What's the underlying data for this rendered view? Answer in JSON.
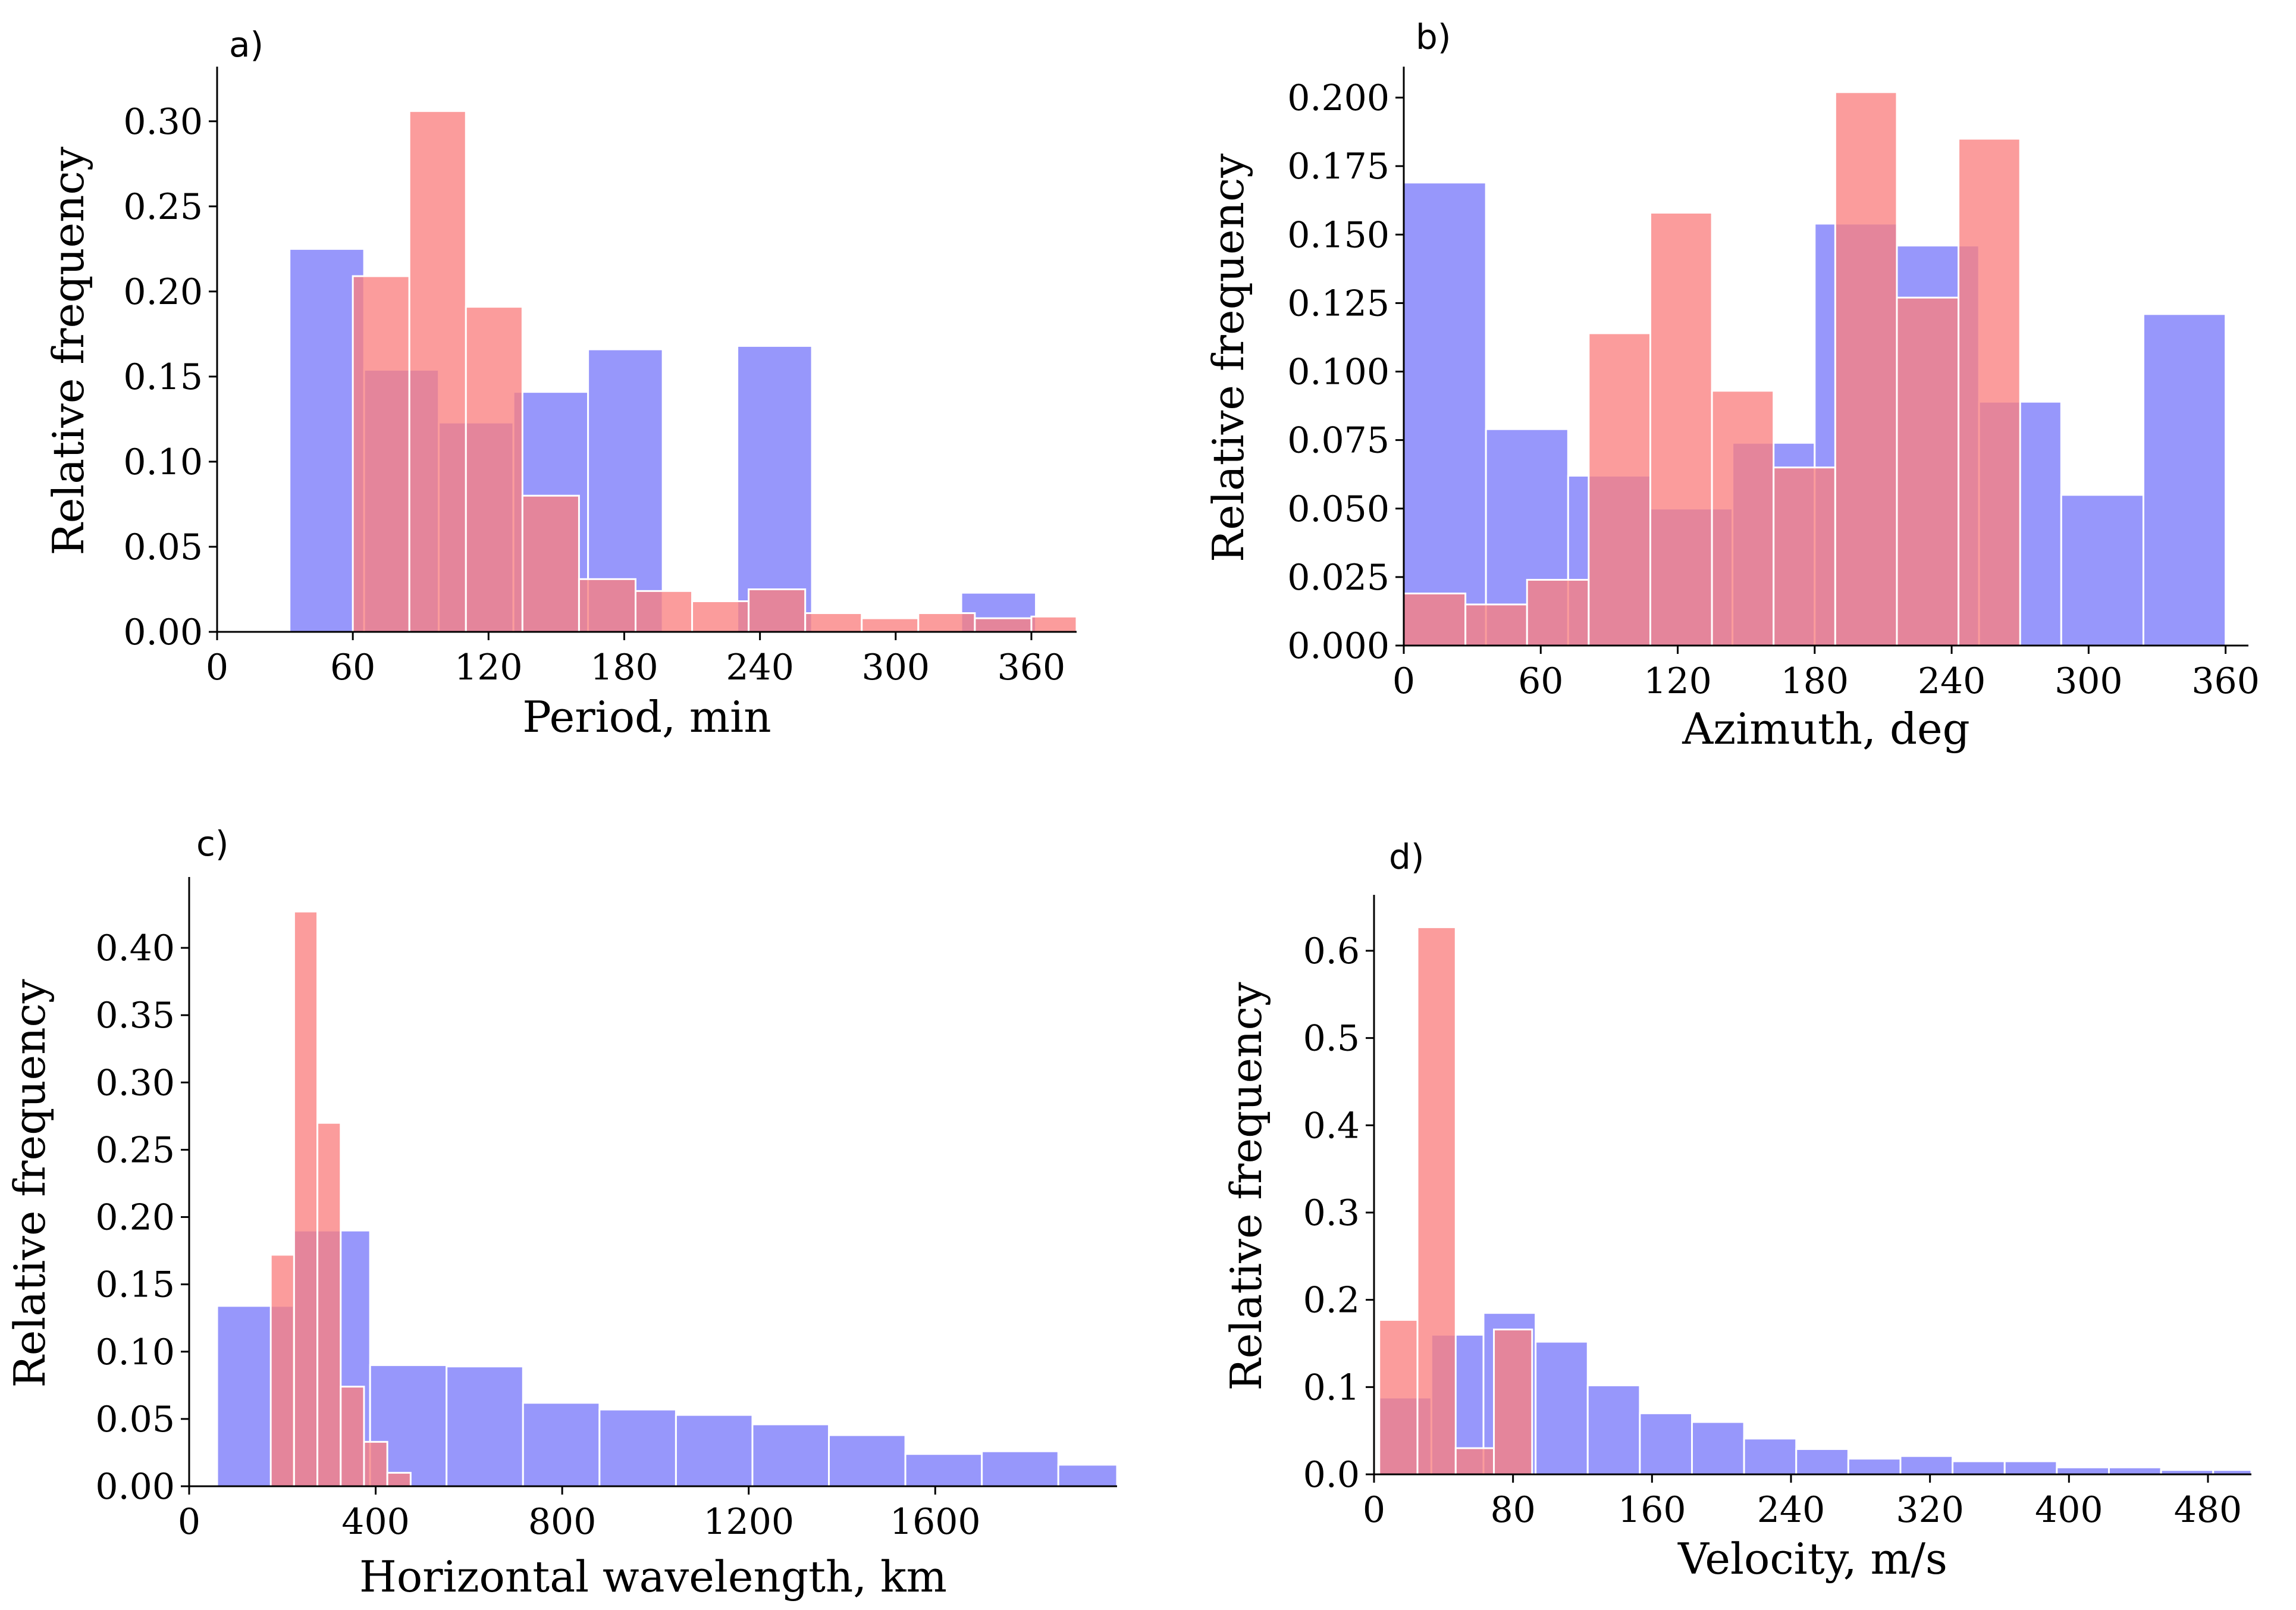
{
  "figure": {
    "colors": {
      "red_fill": "#fa8080",
      "blue_fill": "#8080fa",
      "overlap_fill": "#8c3db0",
      "bar_edge": "#ffffff",
      "axis": "#000000"
    }
  },
  "chart_data": [
    {
      "type": "bar",
      "panel_label": "a)",
      "xlabel": "Period, min",
      "ylabel": "Relative frequency",
      "xlim": [
        0,
        380
      ],
      "ylim": [
        0,
        0.33
      ],
      "xticks": [
        0,
        60,
        120,
        180,
        240,
        300,
        360
      ],
      "xtick_labels": [
        "0",
        "60",
        "120",
        "180",
        "240",
        "300",
        "360"
      ],
      "yticks": [
        0,
        0.05,
        0.1,
        0.15,
        0.2,
        0.25,
        0.3
      ],
      "ytick_labels": [
        "0.00",
        "0.05",
        "0.10",
        "0.15",
        "0.20",
        "0.25",
        "0.30"
      ],
      "series": [
        {
          "name": "blue",
          "color": "#8080fa",
          "bins": [
            {
              "x0": 32,
              "x1": 65,
              "value": 0.225
            },
            {
              "x0": 65,
              "x1": 98,
              "value": 0.154
            },
            {
              "x0": 98,
              "x1": 131,
              "value": 0.123
            },
            {
              "x0": 131,
              "x1": 164,
              "value": 0.141
            },
            {
              "x0": 164,
              "x1": 197,
              "value": 0.166
            },
            {
              "x0": 197,
              "x1": 230,
              "value": 0.0
            },
            {
              "x0": 230,
              "x1": 263,
              "value": 0.168
            },
            {
              "x0": 263,
              "x1": 296,
              "value": 0.0
            },
            {
              "x0": 296,
              "x1": 329,
              "value": 0.0
            },
            {
              "x0": 329,
              "x1": 362,
              "value": 0.023
            }
          ]
        },
        {
          "name": "red",
          "color": "#fa8080",
          "bins": [
            {
              "x0": 60,
              "x1": 85,
              "value": 0.209
            },
            {
              "x0": 85,
              "x1": 110,
              "value": 0.306
            },
            {
              "x0": 110,
              "x1": 135,
              "value": 0.191
            },
            {
              "x0": 135,
              "x1": 160,
              "value": 0.08
            },
            {
              "x0": 160,
              "x1": 185,
              "value": 0.031
            },
            {
              "x0": 185,
              "x1": 210,
              "value": 0.024
            },
            {
              "x0": 210,
              "x1": 235,
              "value": 0.018
            },
            {
              "x0": 235,
              "x1": 260,
              "value": 0.025
            },
            {
              "x0": 260,
              "x1": 285,
              "value": 0.011
            },
            {
              "x0": 285,
              "x1": 310,
              "value": 0.008
            },
            {
              "x0": 310,
              "x1": 335,
              "value": 0.011
            },
            {
              "x0": 335,
              "x1": 360,
              "value": 0.008
            },
            {
              "x0": 360,
              "x1": 380,
              "value": 0.009
            }
          ]
        }
      ]
    },
    {
      "type": "bar",
      "panel_label": "b)",
      "xlabel": "Azimuth, deg",
      "ylabel": "Relative frequency",
      "xlim": [
        0,
        370
      ],
      "ylim": [
        0,
        0.21
      ],
      "xticks": [
        0,
        60,
        120,
        180,
        240,
        300,
        360
      ],
      "xtick_labels": [
        "0",
        "60",
        "120",
        "180",
        "240",
        "300",
        "360"
      ],
      "yticks": [
        0,
        0.025,
        0.05,
        0.075,
        0.1,
        0.125,
        0.15,
        0.175,
        0.2
      ],
      "ytick_labels": [
        "0.000",
        "0.025",
        "0.050",
        "0.075",
        "0.100",
        "0.125",
        "0.150",
        "0.175",
        "0.200"
      ],
      "series": [
        {
          "name": "blue",
          "color": "#8080fa",
          "bins": [
            {
              "x0": 0,
              "x1": 36,
              "value": 0.169
            },
            {
              "x0": 36,
              "x1": 72,
              "value": 0.079
            },
            {
              "x0": 72,
              "x1": 108,
              "value": 0.062
            },
            {
              "x0": 108,
              "x1": 144,
              "value": 0.05
            },
            {
              "x0": 144,
              "x1": 180,
              "value": 0.074
            },
            {
              "x0": 180,
              "x1": 216,
              "value": 0.154
            },
            {
              "x0": 216,
              "x1": 252,
              "value": 0.146
            },
            {
              "x0": 252,
              "x1": 288,
              "value": 0.089
            },
            {
              "x0": 288,
              "x1": 324,
              "value": 0.055
            },
            {
              "x0": 324,
              "x1": 360,
              "value": 0.121
            }
          ]
        },
        {
          "name": "red",
          "color": "#fa8080",
          "bins": [
            {
              "x0": 0,
              "x1": 27,
              "value": 0.019
            },
            {
              "x0": 27,
              "x1": 54,
              "value": 0.015
            },
            {
              "x0": 54,
              "x1": 81,
              "value": 0.024
            },
            {
              "x0": 81,
              "x1": 108,
              "value": 0.114
            },
            {
              "x0": 108,
              "x1": 135,
              "value": 0.158
            },
            {
              "x0": 135,
              "x1": 162,
              "value": 0.093
            },
            {
              "x0": 162,
              "x1": 189,
              "value": 0.065
            },
            {
              "x0": 189,
              "x1": 216,
              "value": 0.202
            },
            {
              "x0": 216,
              "x1": 243,
              "value": 0.127
            },
            {
              "x0": 243,
              "x1": 270,
              "value": 0.185
            }
          ]
        }
      ]
    },
    {
      "type": "bar",
      "panel_label": "c)",
      "xlabel": "Horizontal wavelength, km",
      "ylabel": "Relative frequency",
      "xlim": [
        0,
        1990
      ],
      "ylim": [
        0,
        0.45
      ],
      "xticks": [
        0,
        400,
        800,
        1200,
        1600
      ],
      "xtick_labels": [
        "0",
        "400",
        "800",
        "1200",
        "1600"
      ],
      "yticks": [
        0,
        0.05,
        0.1,
        0.15,
        0.2,
        0.25,
        0.3,
        0.35,
        0.4
      ],
      "ytick_labels": [
        "0.00",
        "0.05",
        "0.10",
        "0.15",
        "0.20",
        "0.25",
        "0.30",
        "0.35",
        "0.40"
      ],
      "series": [
        {
          "name": "blue",
          "color": "#8080fa",
          "bins": [
            {
              "x0": 60,
              "x1": 224,
              "value": 0.134
            },
            {
              "x0": 224,
              "x1": 388,
              "value": 0.19
            },
            {
              "x0": 388,
              "x1": 552,
              "value": 0.09
            },
            {
              "x0": 552,
              "x1": 716,
              "value": 0.089
            },
            {
              "x0": 716,
              "x1": 880,
              "value": 0.062
            },
            {
              "x0": 880,
              "x1": 1044,
              "value": 0.057
            },
            {
              "x0": 1044,
              "x1": 1208,
              "value": 0.053
            },
            {
              "x0": 1208,
              "x1": 1372,
              "value": 0.046
            },
            {
              "x0": 1372,
              "x1": 1536,
              "value": 0.038
            },
            {
              "x0": 1536,
              "x1": 1700,
              "value": 0.024
            },
            {
              "x0": 1700,
              "x1": 1864,
              "value": 0.026
            },
            {
              "x0": 1864,
              "x1": 1990,
              "value": 0.016
            }
          ]
        },
        {
          "name": "red",
          "color": "#fa8080",
          "bins": [
            {
              "x0": 175,
              "x1": 225,
              "value": 0.172
            },
            {
              "x0": 225,
              "x1": 275,
              "value": 0.427
            },
            {
              "x0": 275,
              "x1": 325,
              "value": 0.27
            },
            {
              "x0": 325,
              "x1": 375,
              "value": 0.074
            },
            {
              "x0": 375,
              "x1": 425,
              "value": 0.033
            },
            {
              "x0": 425,
              "x1": 475,
              "value": 0.01
            }
          ]
        }
      ]
    },
    {
      "type": "bar",
      "panel_label": "d)",
      "xlabel": "Velocity, m/s",
      "ylabel": "Relative frequency",
      "xlim": [
        0,
        505
      ],
      "ylim": [
        0,
        0.66
      ],
      "xticks": [
        0,
        80,
        160,
        240,
        320,
        400,
        480
      ],
      "xtick_labels": [
        "0",
        "80",
        "160",
        "240",
        "320",
        "400",
        "480"
      ],
      "yticks": [
        0,
        0.1,
        0.2,
        0.3,
        0.4,
        0.5,
        0.6
      ],
      "ytick_labels": [
        "0.0",
        "0.1",
        "0.2",
        "0.3",
        "0.4",
        "0.5",
        "0.6"
      ],
      "series": [
        {
          "name": "blue",
          "color": "#8080fa",
          "bins": [
            {
              "x0": 3,
              "x1": 33,
              "value": 0.088
            },
            {
              "x0": 33,
              "x1": 63,
              "value": 0.16
            },
            {
              "x0": 63,
              "x1": 93,
              "value": 0.185
            },
            {
              "x0": 93,
              "x1": 123,
              "value": 0.152
            },
            {
              "x0": 123,
              "x1": 153,
              "value": 0.102
            },
            {
              "x0": 153,
              "x1": 183,
              "value": 0.07
            },
            {
              "x0": 183,
              "x1": 213,
              "value": 0.06
            },
            {
              "x0": 213,
              "x1": 243,
              "value": 0.041
            },
            {
              "x0": 243,
              "x1": 273,
              "value": 0.029
            },
            {
              "x0": 273,
              "x1": 303,
              "value": 0.018
            },
            {
              "x0": 303,
              "x1": 333,
              "value": 0.021
            },
            {
              "x0": 333,
              "x1": 363,
              "value": 0.015
            },
            {
              "x0": 363,
              "x1": 393,
              "value": 0.015
            },
            {
              "x0": 393,
              "x1": 423,
              "value": 0.008
            },
            {
              "x0": 423,
              "x1": 453,
              "value": 0.008
            },
            {
              "x0": 453,
              "x1": 483,
              "value": 0.005
            },
            {
              "x0": 483,
              "x1": 505,
              "value": 0.005
            }
          ]
        },
        {
          "name": "red",
          "color": "#fa8080",
          "bins": [
            {
              "x0": 3,
              "x1": 25,
              "value": 0.177
            },
            {
              "x0": 25,
              "x1": 47,
              "value": 0.627
            },
            {
              "x0": 47,
              "x1": 69,
              "value": 0.03
            },
            {
              "x0": 69,
              "x1": 91,
              "value": 0.166
            }
          ]
        }
      ]
    }
  ]
}
